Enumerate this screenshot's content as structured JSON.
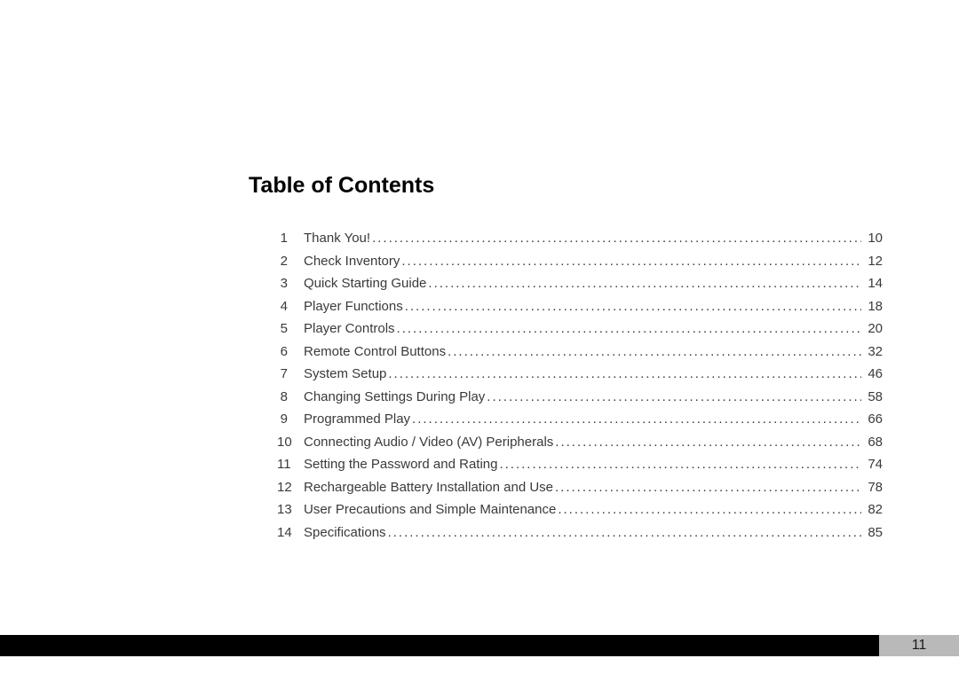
{
  "heading": "Table of Contents",
  "entries": [
    {
      "num": "1",
      "title": "Thank You!",
      "page": "10"
    },
    {
      "num": "2",
      "title": "Check Inventory",
      "page": "12"
    },
    {
      "num": "3",
      "title": "Quick Starting Guide",
      "page": "14"
    },
    {
      "num": "4",
      "title": "Player Functions",
      "page": "18"
    },
    {
      "num": "5",
      "title": "Player Controls",
      "page": "20"
    },
    {
      "num": "6",
      "title": "Remote Control Buttons",
      "page": "32"
    },
    {
      "num": "7",
      "title": "System Setup",
      "page": "46"
    },
    {
      "num": "8",
      "title": "Changing Settings During Play",
      "page": "58"
    },
    {
      "num": "9",
      "title": "Programmed Play",
      "page": "66"
    },
    {
      "num": "10",
      "title": "Connecting Audio / Video (AV) Peripherals",
      "page": "68"
    },
    {
      "num": "11",
      "title": "Setting the Password and Rating",
      "page": "74"
    },
    {
      "num": "12",
      "title": "Rechargeable Battery Installation and Use",
      "page": "78"
    },
    {
      "num": "13",
      "title": "User Precautions and Simple Maintenance",
      "page": "82"
    },
    {
      "num": "14",
      "title": "Specifications",
      "page": "85"
    }
  ],
  "page_number": "11",
  "styling": {
    "background_color": "#ffffff",
    "heading_color": "#000000",
    "heading_fontsize": 25,
    "heading_weight": "bold",
    "entry_color": "#3a3a3a",
    "entry_fontsize": 15,
    "entry_lineheight": 1.7,
    "footer_black": "#000000",
    "footer_gray": "#b9b9b9",
    "page_number_fontsize": 16,
    "font_family": "Arial, Helvetica, sans-serif",
    "leader_char": "."
  }
}
